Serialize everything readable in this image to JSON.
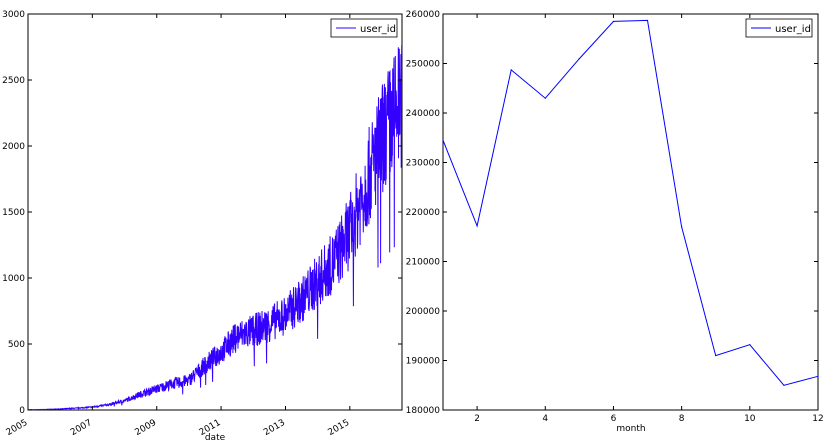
{
  "chart_data": [
    {
      "type": "line",
      "title": "",
      "xlabel": "date",
      "ylabel": "",
      "x_is_date": true,
      "xlim": [
        "2005-01-01",
        "2016-08-15"
      ],
      "ylim": [
        0,
        3000
      ],
      "xticks": [
        "2005",
        "2007",
        "2009",
        "2011",
        "2013",
        "2015"
      ],
      "yticks": [
        "0",
        "500",
        "1000",
        "1500",
        "2000",
        "2500",
        "3000"
      ],
      "legend": {
        "position": "top-right",
        "entries": [
          "user_id"
        ]
      },
      "grid": false,
      "color": "#3300ff",
      "series": [
        {
          "name": "user_id",
          "note_trend_points": "daily counts, strongly noisy; trend values listed",
          "x": [
            "2005-01-01",
            "2005-07-01",
            "2006-01-01",
            "2006-07-01",
            "2007-01-01",
            "2007-07-01",
            "2008-01-01",
            "2008-07-01",
            "2009-01-01",
            "2009-07-01",
            "2010-01-01",
            "2010-07-01",
            "2011-01-01",
            "2011-07-01",
            "2012-01-01",
            "2012-07-01",
            "2013-01-01",
            "2013-07-01",
            "2014-01-01",
            "2014-07-01",
            "2015-01-01",
            "2015-07-01",
            "2016-01-01",
            "2016-07-01"
          ],
          "values": [
            2,
            4,
            8,
            14,
            22,
            40,
            70,
            120,
            160,
            200,
            225,
            340,
            440,
            560,
            600,
            650,
            720,
            830,
            980,
            1120,
            1350,
            1700,
            2050,
            2300
          ]
        }
      ]
    },
    {
      "type": "line",
      "title": "",
      "xlabel": "month",
      "ylabel": "",
      "xlim": [
        1,
        12
      ],
      "ylim": [
        180000,
        260000
      ],
      "xticks": [
        "2",
        "4",
        "6",
        "8",
        "10",
        "12"
      ],
      "yticks": [
        "180000",
        "190000",
        "200000",
        "210000",
        "220000",
        "230000",
        "240000",
        "250000",
        "260000"
      ],
      "legend": {
        "position": "top-right",
        "entries": [
          "user_id"
        ]
      },
      "grid": false,
      "color": "#0000ff",
      "series": [
        {
          "name": "user_id",
          "x": [
            1,
            2,
            3,
            4,
            5,
            6,
            7,
            8,
            9,
            10,
            11,
            12
          ],
          "values": [
            234500,
            217200,
            248700,
            243000,
            251000,
            258500,
            258700,
            217000,
            191000,
            193200,
            185000,
            186800
          ]
        }
      ]
    }
  ]
}
